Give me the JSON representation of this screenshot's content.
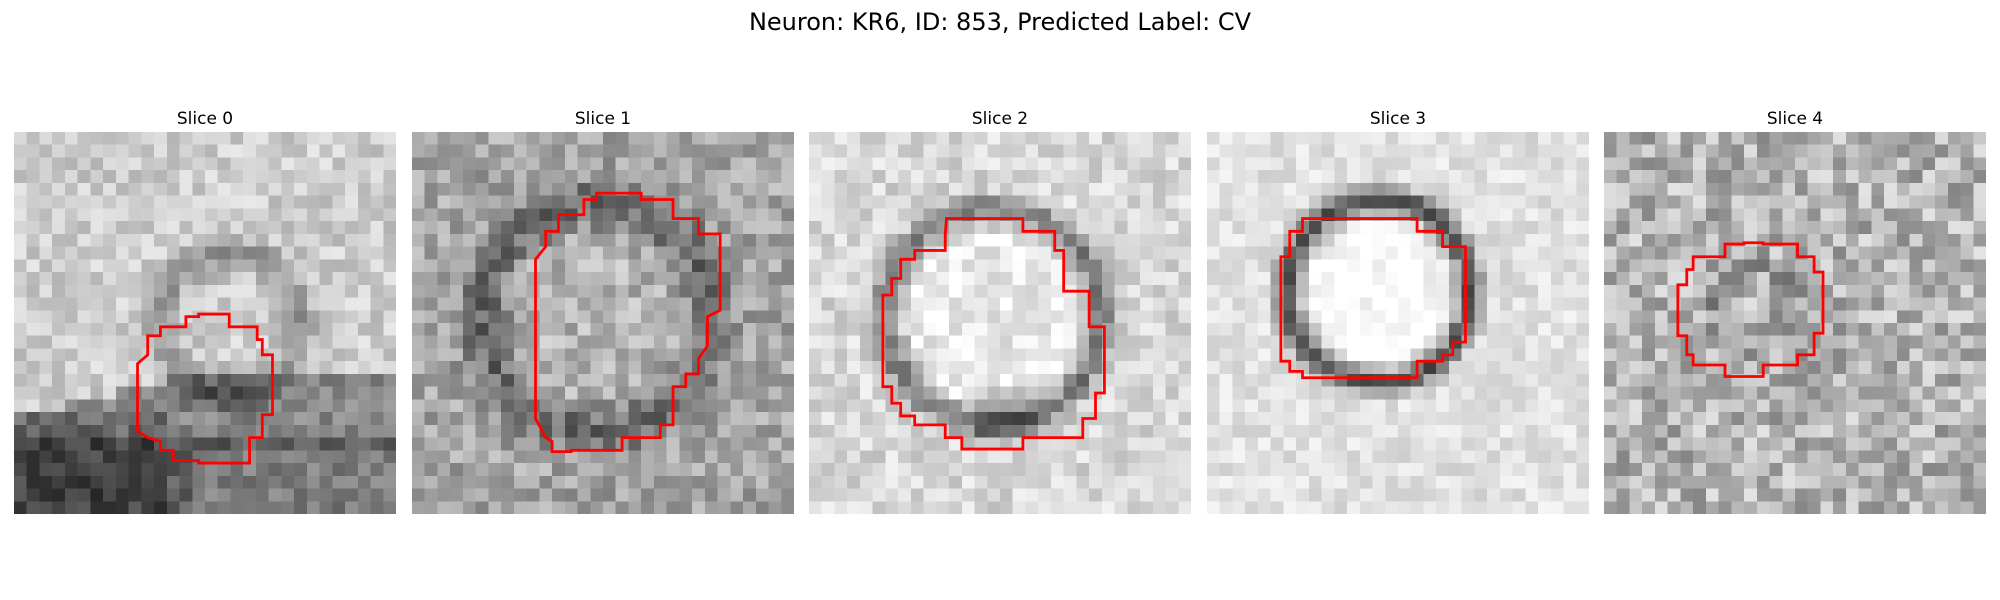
{
  "figure": {
    "title": "Neuron: KR6, ID: 853, Predicted Label: CV",
    "contour_color": "#ff0000"
  },
  "panels": [
    {
      "title": "Slice 0",
      "pattern": "membrane-bend",
      "contour": "small-octagon-lower"
    },
    {
      "title": "Slice 1",
      "pattern": "ring-large",
      "contour": "large-octagon"
    },
    {
      "title": "Slice 2",
      "pattern": "ring-medium",
      "contour": "medium-octagon"
    },
    {
      "title": "Slice 3",
      "pattern": "ring-dark",
      "contour": "medium-octagon-upper"
    },
    {
      "title": "Slice 4",
      "pattern": "noise",
      "contour": "small-octagon-center"
    }
  ]
}
